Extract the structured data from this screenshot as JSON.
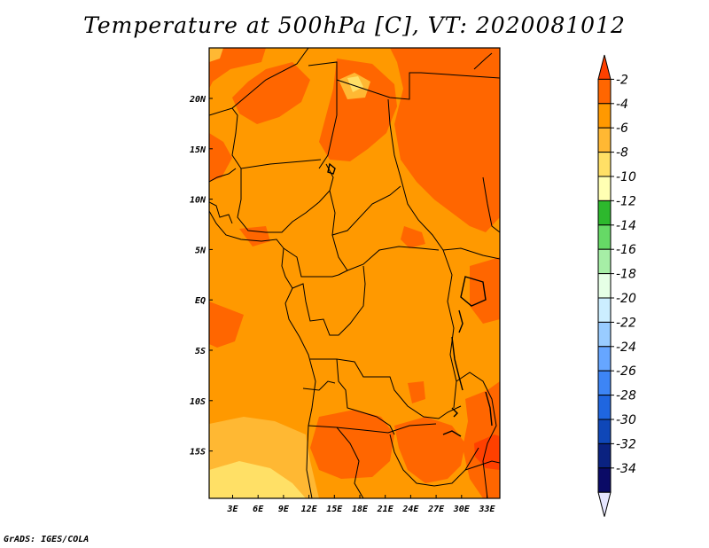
{
  "title": "Temperature at 500hPa [C], VT: 2020081012",
  "credit": "GrADS: IGES/COLA",
  "map": {
    "lat_labels": [
      "20N",
      "15N",
      "10N",
      "5N",
      "EQ",
      "5S",
      "10S",
      "15S"
    ],
    "lon_labels": [
      "3E",
      "6E",
      "9E",
      "12E",
      "15E",
      "18E",
      "21E",
      "24E",
      "27E",
      "30E",
      "33E"
    ]
  },
  "colorbar": {
    "levels": [
      "-2",
      "-4",
      "-6",
      "-8",
      "-10",
      "-12",
      "-14",
      "-16",
      "-18",
      "-20",
      "-22",
      "-24",
      "-26",
      "-28",
      "-30",
      "-32",
      "-34"
    ],
    "colors": [
      "#ff4000",
      "#ff6600",
      "#ff9900",
      "#ffb833",
      "#ffe066",
      "#ffffb3",
      "#2db82d",
      "#66d966",
      "#a6eea6",
      "#e6ffe6",
      "#cceeff",
      "#99ccff",
      "#66a6ff",
      "#3d85f5",
      "#1f66e0",
      "#0f47b8",
      "#0a2280",
      "#0a0a66",
      "#e6e6ff"
    ]
  }
}
